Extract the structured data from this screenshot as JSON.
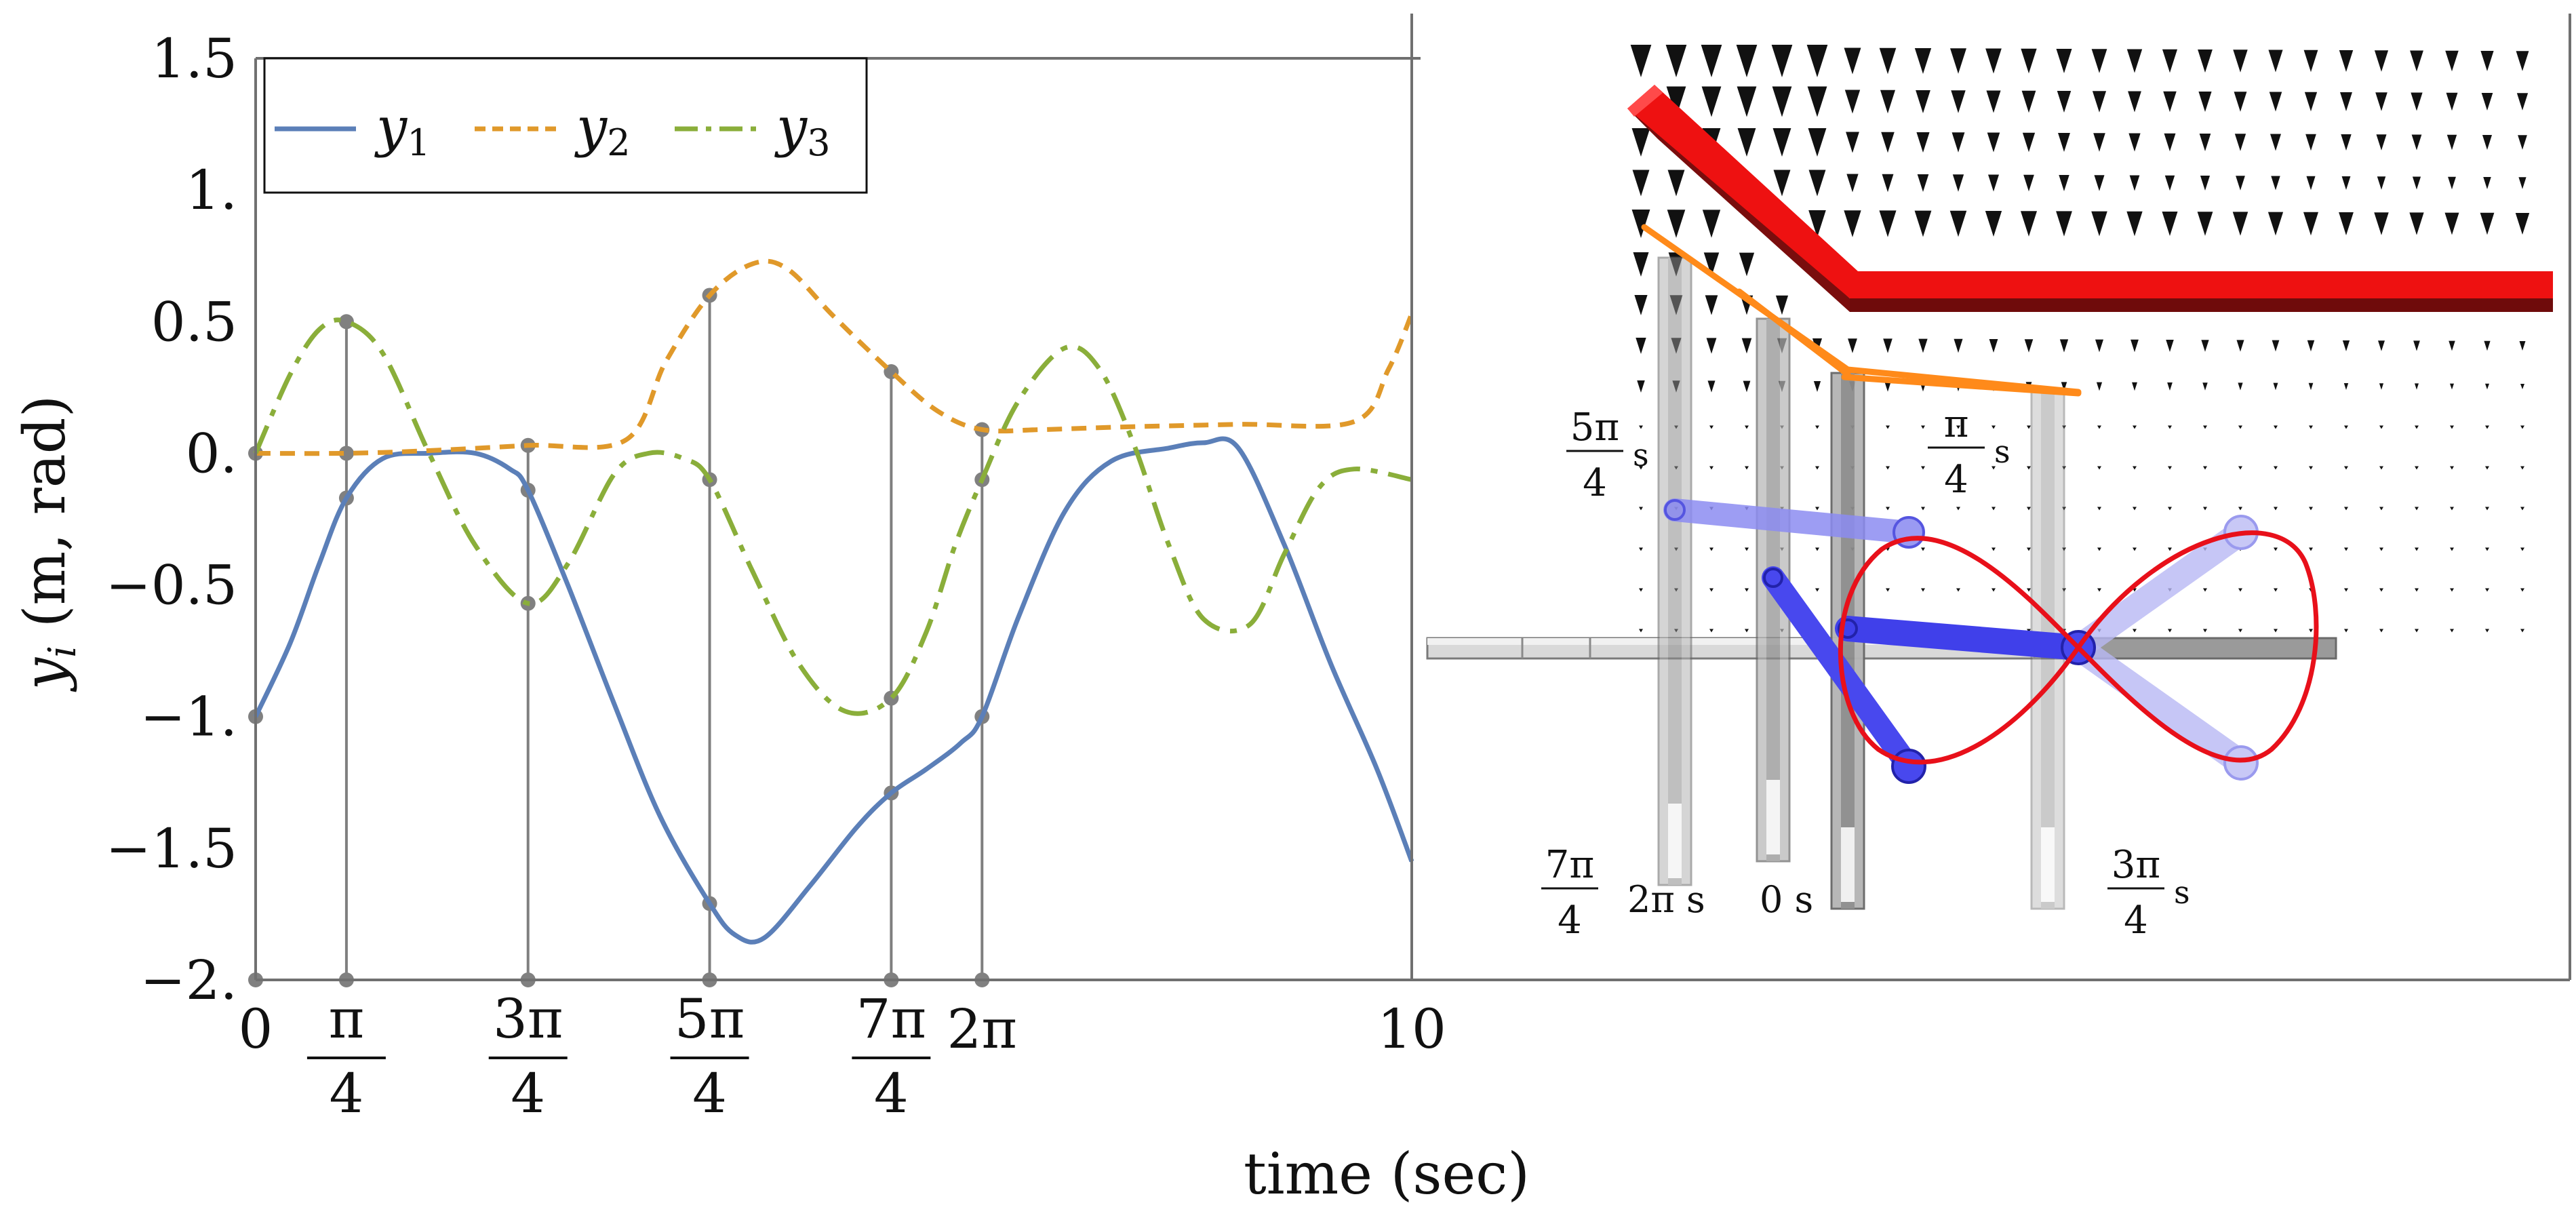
{
  "chart_data": [
    {
      "type": "line",
      "title": "",
      "xlabel": "time (sec)",
      "ylabel_var": "y",
      "ylabel_sub": "i",
      "ylabel_units": "(m, rad)",
      "xlim": [
        0,
        10
      ],
      "ylim": [
        -2,
        1.5
      ],
      "y_ticks": [
        {
          "value": 1.5,
          "label": "1.5"
        },
        {
          "value": 1.0,
          "label": "1."
        },
        {
          "value": 0.5,
          "label": "0.5"
        },
        {
          "value": 0.0,
          "label": "0."
        },
        {
          "value": -0.5,
          "label": "−0.5"
        },
        {
          "value": -1.0,
          "label": "−1."
        },
        {
          "value": -1.5,
          "label": "−1.5"
        },
        {
          "value": -2.0,
          "label": "−2."
        }
      ],
      "x_ticks": [
        {
          "value": 0,
          "label": "0"
        },
        {
          "value": 0.7854,
          "num": "π",
          "den": "4"
        },
        {
          "value": 2.3562,
          "num": "3π",
          "den": "4"
        },
        {
          "value": 3.927,
          "num": "5π",
          "den": "4"
        },
        {
          "value": 5.4978,
          "num": "7π",
          "den": "4"
        },
        {
          "value": 6.2832,
          "label": "2π"
        },
        {
          "value": 10,
          "label": "10"
        }
      ],
      "grid": false,
      "legend_position": "top-left",
      "series": [
        {
          "name": "y",
          "name_sub": "1",
          "color": "#5b7fb8",
          "style": "solid",
          "x": [
            0,
            0.3,
            0.55,
            0.7854,
            1.1,
            1.5,
            1.9,
            2.2,
            2.3562,
            2.7,
            3.1,
            3.5,
            3.927,
            4.15,
            4.4,
            4.8,
            5.2,
            5.4978,
            5.8,
            6.1,
            6.2832,
            6.6,
            7.0,
            7.4,
            7.9,
            8.2,
            8.5,
            8.9,
            9.3,
            9.7,
            10
          ],
          "y": [
            -1.0,
            -0.72,
            -0.42,
            -0.17,
            -0.02,
            0.0,
            0.0,
            -0.06,
            -0.14,
            -0.5,
            -0.95,
            -1.38,
            -1.71,
            -1.83,
            -1.84,
            -1.64,
            -1.42,
            -1.29,
            -1.2,
            -1.1,
            -1.0,
            -0.62,
            -0.22,
            -0.03,
            0.02,
            0.04,
            0.02,
            -0.35,
            -0.8,
            -1.2,
            -1.55
          ]
        },
        {
          "name": "y",
          "name_sub": "2",
          "color": "#e0992a",
          "style": "dashed",
          "x": [
            0,
            0.7854,
            1.5,
            2.3562,
            3.2,
            3.55,
            3.927,
            4.3,
            4.6,
            5.0,
            5.4978,
            5.9,
            6.2832,
            6.8,
            7.5,
            8.5,
            9.5,
            9.8,
            10
          ],
          "y": [
            0.0,
            0.0,
            0.01,
            0.03,
            0.05,
            0.35,
            0.6,
            0.72,
            0.7,
            0.52,
            0.31,
            0.16,
            0.09,
            0.09,
            0.1,
            0.11,
            0.12,
            0.32,
            0.53
          ]
        },
        {
          "name": "y",
          "name_sub": "3",
          "color": "#8aae3a",
          "style": "dashdot",
          "x": [
            0,
            0.3,
            0.55,
            0.7854,
            1.1,
            1.5,
            1.9,
            2.3562,
            2.7,
            3.1,
            3.4,
            3.7,
            3.927,
            4.3,
            4.7,
            5.1,
            5.4978,
            5.8,
            6.05,
            6.2832,
            6.6,
            7.0,
            7.3,
            7.6,
            7.9,
            8.2,
            8.6,
            8.9,
            9.2,
            9.5,
            10
          ],
          "y": [
            0.0,
            0.3,
            0.47,
            0.5,
            0.38,
            0.0,
            -0.35,
            -0.57,
            -0.42,
            -0.08,
            0.0,
            -0.02,
            -0.1,
            -0.45,
            -0.8,
            -0.98,
            -0.93,
            -0.68,
            -0.35,
            -0.1,
            0.2,
            0.4,
            0.32,
            0.03,
            -0.35,
            -0.63,
            -0.65,
            -0.38,
            -0.13,
            -0.06,
            -0.1
          ]
        }
      ],
      "markers": [
        {
          "x": 0,
          "y": [
            -2.0,
            -1.0,
            0.0
          ]
        },
        {
          "x": 0.7854,
          "y": [
            -2.0,
            -0.17,
            0.0,
            0.5
          ]
        },
        {
          "x": 2.3562,
          "y": [
            -2.0,
            -0.57,
            -0.14,
            0.03
          ]
        },
        {
          "x": 3.927,
          "y": [
            -2.0,
            -1.71,
            -0.1,
            0.6
          ]
        },
        {
          "x": 5.4978,
          "y": [
            -2.0,
            -1.29,
            -0.93,
            0.31
          ]
        },
        {
          "x": 6.2832,
          "y": [
            -2.0,
            -1.0,
            -0.1,
            0.09
          ]
        }
      ]
    }
  ],
  "scene": {
    "labels": [
      {
        "id": "5pi4",
        "num": "5π",
        "den": "4",
        "unit": "s"
      },
      {
        "id": "pi4",
        "num": "π",
        "den": "4",
        "unit": "s"
      },
      {
        "id": "7pi4",
        "num": "7π",
        "den": "4",
        "unit": ""
      },
      {
        "id": "2pi",
        "text": "2π s"
      },
      {
        "id": "zero",
        "text": "0 s"
      },
      {
        "id": "3pi4",
        "num": "3π",
        "den": "4",
        "unit": "s"
      }
    ],
    "colors": {
      "roof": "#ee1111",
      "roof_shadow": "#7a0d0d",
      "cable": "#ff8a1a",
      "arm": "#4848ee",
      "arm_ghost": "#b8b8f4",
      "path": "#e8101a",
      "post": "#a8a8a8",
      "rail": "#d6d6d6",
      "arrow": "#111111"
    }
  }
}
